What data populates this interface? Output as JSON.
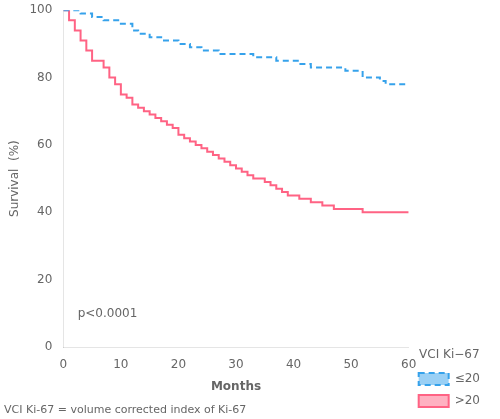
{
  "chart_data": {
    "type": "step",
    "xlabel": "Months",
    "ylabel": "Survival  (%)",
    "xlim": [
      0,
      60
    ],
    "ylim": [
      0,
      100
    ],
    "xticks": [
      0,
      10,
      20,
      30,
      40,
      50,
      60
    ],
    "yticks": [
      0,
      20,
      40,
      60,
      80,
      100
    ],
    "grid": false,
    "legend": "lower right",
    "legend_title": "VCI Ki−67",
    "footnote": "VCI Ki-67 = volume corrected index of Ki-67",
    "annotations": [
      {
        "text": "p<0.0001",
        "x": 2.5,
        "y": 8
      }
    ],
    "x": [
      0,
      1,
      2,
      3,
      4,
      5,
      6,
      7,
      8,
      9,
      10,
      11,
      12,
      13,
      14,
      15,
      16,
      17,
      18,
      19,
      20,
      21,
      22,
      23,
      24,
      25,
      26,
      27,
      28,
      29,
      30,
      31,
      32,
      33,
      34,
      35,
      36,
      37,
      38,
      39,
      40,
      41,
      42,
      43,
      44,
      45,
      46,
      47,
      48,
      49,
      50,
      51,
      52,
      53,
      54,
      55,
      56,
      57,
      58,
      59,
      60
    ],
    "series": [
      {
        "name": "≤20",
        "line_style": "dashed",
        "values": [
          100,
          100,
          100,
          99,
          99,
          98,
          98,
          97,
          97,
          97,
          96,
          96,
          94,
          93,
          93,
          92,
          92,
          91,
          91,
          91,
          90,
          90,
          89,
          89,
          88,
          88,
          88,
          87,
          87,
          87,
          87,
          87,
          87,
          86,
          86,
          86,
          86,
          85,
          85,
          85,
          85,
          84,
          84,
          83,
          83,
          83,
          83,
          83,
          83,
          82,
          82,
          82,
          80,
          80,
          80,
          79,
          78,
          78,
          78,
          78,
          78
        ]
      },
      {
        "name": ">20",
        "line_style": "solid",
        "values": [
          100,
          97,
          94,
          91,
          88,
          85,
          85,
          83,
          80,
          78,
          75,
          74,
          72,
          71,
          70,
          69,
          68,
          67,
          66,
          65,
          63,
          62,
          61,
          60,
          59,
          58,
          57,
          56,
          55,
          54,
          53,
          52,
          51,
          50,
          50,
          49,
          48,
          47,
          46,
          45,
          45,
          44,
          44,
          43,
          43,
          42,
          42,
          41,
          41,
          41,
          41,
          41,
          40,
          40,
          40,
          40,
          40,
          40,
          40,
          40,
          40
        ]
      }
    ]
  }
}
